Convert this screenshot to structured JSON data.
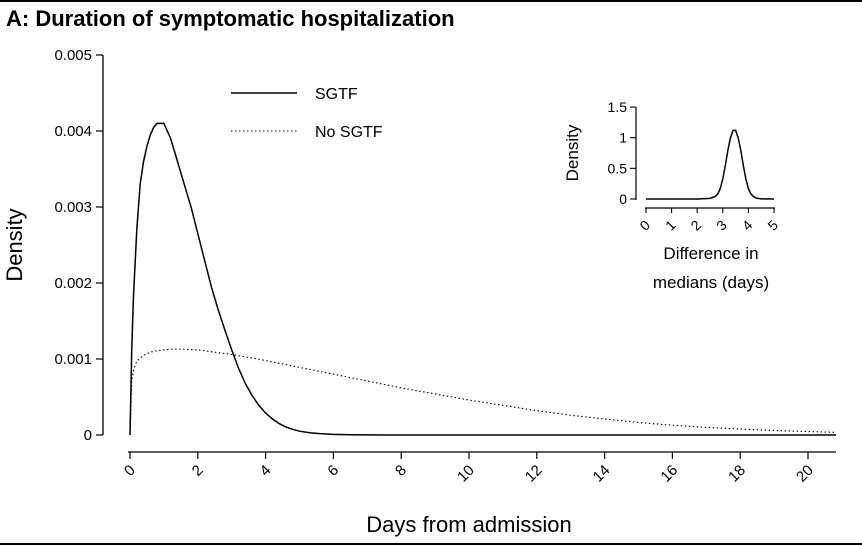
{
  "chart_data": [
    {
      "type": "line",
      "title": "A: Duration of symptomatic hospitalization",
      "xlabel": "Days from admission",
      "ylabel": "Density",
      "xlim": [
        0,
        21
      ],
      "ylim": [
        0,
        0.005
      ],
      "xticks": [
        "0",
        "2",
        "4",
        "6",
        "8",
        "10",
        "12",
        "14",
        "16",
        "18",
        "20"
      ],
      "yticks": [
        "0",
        "0.001",
        "0.002",
        "0.003",
        "0.004",
        "0.005"
      ],
      "grid": false,
      "legend_position": "top-left",
      "series": [
        {
          "name": "SGTF",
          "style": "solid",
          "x": [
            0,
            0.05,
            0.1,
            0.2,
            0.3,
            0.4,
            0.5,
            0.6,
            0.7,
            0.8,
            0.9,
            1.0,
            1.1,
            1.2,
            1.3,
            1.4,
            1.5,
            1.6,
            1.8,
            2.0,
            2.2,
            2.4,
            2.6,
            2.8,
            3.0,
            3.2,
            3.4,
            3.6,
            3.8,
            4.0,
            4.2,
            4.4,
            4.6,
            4.8,
            5.0,
            5.3,
            5.6,
            6.0,
            6.5,
            7.0,
            8.0,
            10,
            14,
            21
          ],
          "y": [
            0,
            0.0011,
            0.0018,
            0.0027,
            0.0033,
            0.0036,
            0.0038,
            0.00395,
            0.00405,
            0.0041,
            0.0041,
            0.0041,
            0.004,
            0.0039,
            0.00375,
            0.0036,
            0.00345,
            0.0033,
            0.003,
            0.00265,
            0.0023,
            0.00195,
            0.00165,
            0.00138,
            0.00112,
            0.00088,
            0.00068,
            0.00052,
            0.00039,
            0.00029,
            0.00021,
            0.00015,
            0.000105,
            7.5e-05,
            5e-05,
            3e-05,
            1.8e-05,
            8e-06,
            3e-06,
            1e-06,
            0,
            0,
            0,
            0
          ]
        },
        {
          "name": "No SGTF",
          "style": "dotted",
          "x": [
            0,
            0.05,
            0.1,
            0.2,
            0.4,
            0.6,
            0.8,
            1.0,
            1.2,
            1.5,
            2.0,
            2.5,
            3.0,
            3.5,
            4.0,
            5.0,
            6.0,
            7.0,
            8.0,
            9.0,
            10,
            11,
            12,
            13,
            14,
            15,
            16,
            17,
            18,
            19,
            20,
            21
          ],
          "y": [
            0,
            0.0007,
            0.00085,
            0.00097,
            0.00105,
            0.00109,
            0.00111,
            0.00112,
            0.00113,
            0.00113,
            0.00112,
            0.00109,
            0.00106,
            0.00102,
            0.00098,
            0.00089,
            0.0008,
            0.00071,
            0.00062,
            0.00054,
            0.00046,
            0.00039,
            0.00032,
            0.00026,
            0.00021,
            0.000165,
            0.000128,
            0.0001,
            7.8e-05,
            6e-05,
            4.6e-05,
            3.5e-05
          ]
        }
      ]
    },
    {
      "type": "line",
      "title": "",
      "xlabel": "Difference in medians (days)",
      "ylabel": "Density",
      "xlim": [
        0,
        5.2
      ],
      "ylim": [
        0,
        1.5
      ],
      "xticks": [
        "0",
        "1",
        "2",
        "3",
        "4",
        "5"
      ],
      "yticks": [
        "0",
        "0.5",
        "1",
        "1.5"
      ],
      "position": "top-right inset",
      "series": [
        {
          "style": "solid",
          "x": [
            0,
            1,
            2,
            2.5,
            2.7,
            2.8,
            2.9,
            3.0,
            3.1,
            3.2,
            3.3,
            3.4,
            3.5,
            3.6,
            3.7,
            3.8,
            3.9,
            4.0,
            4.1,
            4.2,
            4.3,
            4.5,
            5.0
          ],
          "y": [
            0,
            0,
            0,
            0.01,
            0.04,
            0.08,
            0.17,
            0.33,
            0.55,
            0.8,
            1.0,
            1.12,
            1.12,
            1.0,
            0.8,
            0.55,
            0.33,
            0.17,
            0.08,
            0.04,
            0.015,
            0.003,
            0
          ]
        }
      ]
    }
  ]
}
